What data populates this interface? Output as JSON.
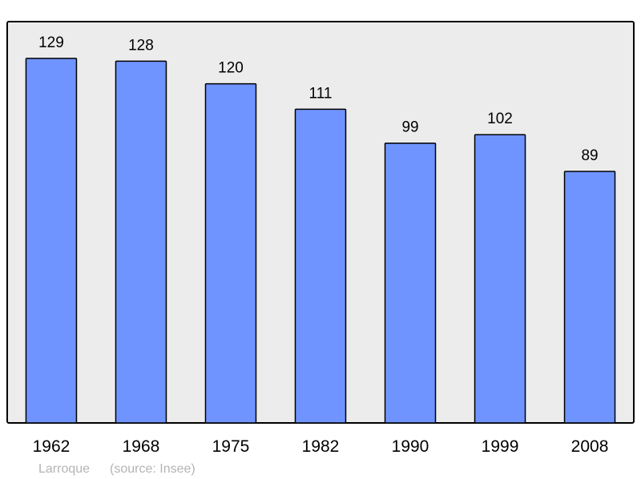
{
  "chart_data": {
    "type": "bar",
    "categories": [
      "1962",
      "1968",
      "1975",
      "1982",
      "1990",
      "1999",
      "2008"
    ],
    "values": [
      129,
      128,
      120,
      111,
      99,
      102,
      89
    ],
    "data_labels": [
      "129",
      "128",
      "120",
      "111",
      "99",
      "102",
      "89"
    ],
    "title": "",
    "xlabel": "",
    "ylabel": "",
    "ylim": [
      0,
      142
    ],
    "grid": false,
    "legend": "none",
    "caption": {
      "place": "Larroque",
      "source": "(source: Insee)"
    },
    "colors": {
      "bar": "#7094ff",
      "plot_background": "#ececec",
      "border": "#000000",
      "caption": "#b4b4b4"
    }
  }
}
